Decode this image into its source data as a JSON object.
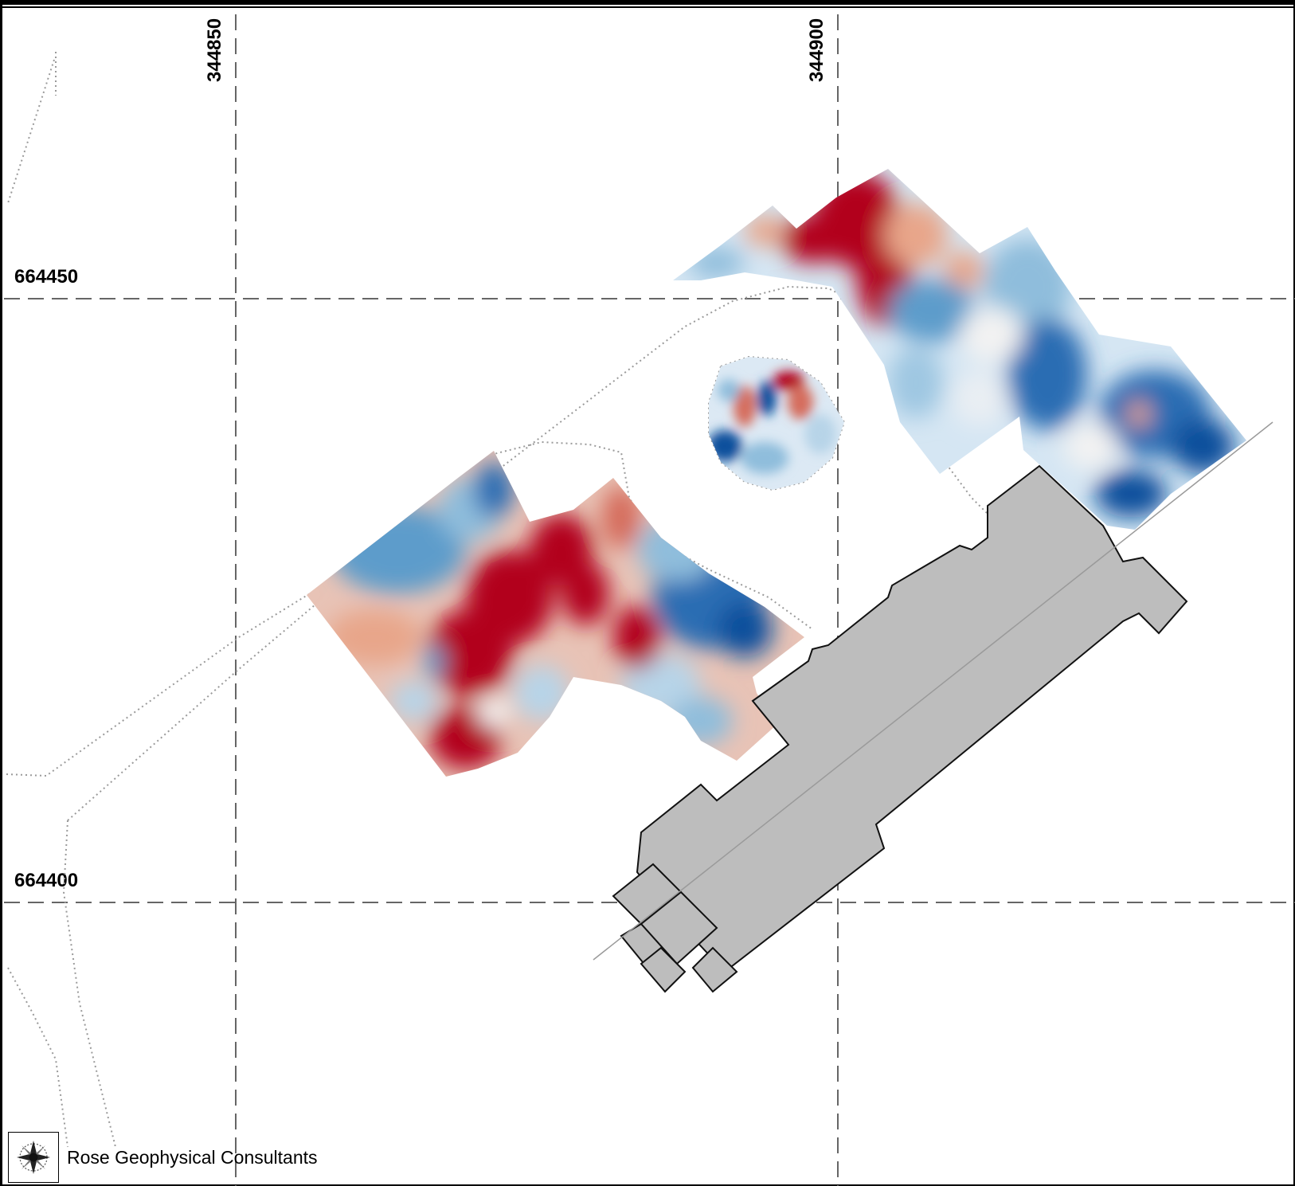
{
  "grid": {
    "easting_labels": [
      "344850",
      "344900"
    ],
    "northing_labels": [
      "664450",
      "664400"
    ]
  },
  "credit": {
    "organization": "Rose Geophysical Consultants",
    "logo_icon": "rose-compass-icon"
  },
  "colors": {
    "high": "#b2001f",
    "mid_high": "#e8a68a",
    "neutral": "#f4f4f4",
    "mid_low": "#8fbddc",
    "low": "#0b4f9c",
    "building_fill": "#bdbdbd",
    "building_stroke": "#111111",
    "grid_line": "#666666",
    "boundary_dots": "#9a9a9a"
  }
}
